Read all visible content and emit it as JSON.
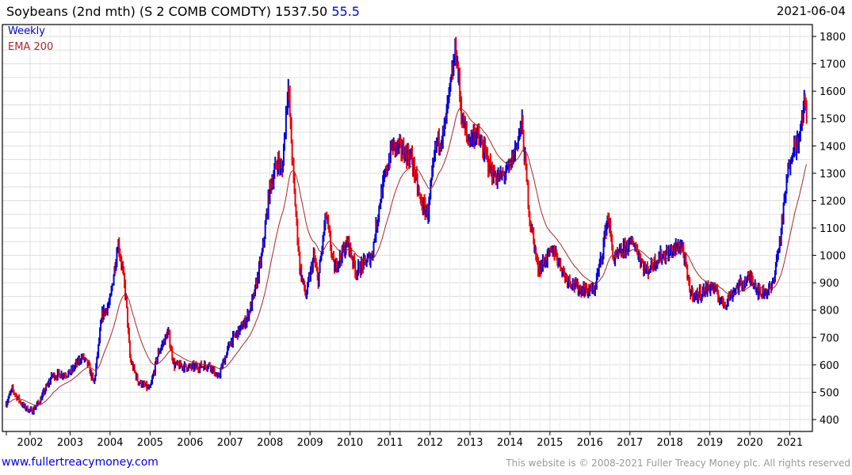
{
  "header": {
    "title": "Soybeans (2nd mth) (S 2 COMB COMDTY) 1537.50",
    "change": "55.5",
    "date": "2021-06-04"
  },
  "footer": {
    "site": "www.fullertreacymoney.com",
    "copyright": "This website is © 2008-2021 Fuller Treacy Money plc. All rights reserved"
  },
  "chart_data": {
    "type": "line",
    "title": "Soybeans (2nd mth) (S 2 COMB COMDTY)",
    "legend": [
      "Weekly",
      "EMA 200"
    ],
    "legend_placement": "top-left",
    "colors": {
      "up": "#0000dd",
      "down": "#ee0000",
      "ema": "#a52a2a",
      "grid": "#dddddd"
    },
    "xlim": [
      2001.4,
      2021.5
    ],
    "ylim": [
      380,
      1830
    ],
    "x_ticks": [
      "2002",
      "2003",
      "2004",
      "2005",
      "2006",
      "2007",
      "2008",
      "2009",
      "2010",
      "2011",
      "2012",
      "2013",
      "2014",
      "2015",
      "2016",
      "2017",
      "2018",
      "2019",
      "2020",
      "2021"
    ],
    "y_ticks": [
      400,
      500,
      600,
      700,
      800,
      900,
      1000,
      1100,
      1200,
      1300,
      1400,
      1500,
      1600,
      1700,
      1800
    ],
    "grid": true,
    "ema_period_weeks": 40,
    "price_path": [
      [
        2001.4,
        460
      ],
      [
        2001.55,
        510
      ],
      [
        2001.85,
        445
      ],
      [
        2002.05,
        430
      ],
      [
        2002.25,
        470
      ],
      [
        2002.55,
        560
      ],
      [
        2003.0,
        570
      ],
      [
        2003.3,
        630
      ],
      [
        2003.45,
        600
      ],
      [
        2003.6,
        530
      ],
      [
        2003.8,
        780
      ],
      [
        2004.0,
        830
      ],
      [
        2004.2,
        1050
      ],
      [
        2004.3,
        960
      ],
      [
        2004.4,
        840
      ],
      [
        2004.5,
        620
      ],
      [
        2004.7,
        540
      ],
      [
        2005.0,
        510
      ],
      [
        2005.2,
        640
      ],
      [
        2005.45,
        720
      ],
      [
        2005.6,
        600
      ],
      [
        2006.0,
        590
      ],
      [
        2006.5,
        600
      ],
      [
        2006.7,
        550
      ],
      [
        2007.0,
        680
      ],
      [
        2007.4,
        760
      ],
      [
        2007.6,
        850
      ],
      [
        2007.8,
        1000
      ],
      [
        2008.0,
        1250
      ],
      [
        2008.2,
        1350
      ],
      [
        2008.3,
        1300
      ],
      [
        2008.45,
        1630
      ],
      [
        2008.6,
        1250
      ],
      [
        2008.75,
        950
      ],
      [
        2008.9,
        850
      ],
      [
        2009.1,
        1000
      ],
      [
        2009.2,
        900
      ],
      [
        2009.4,
        1150
      ],
      [
        2009.6,
        950
      ],
      [
        2009.95,
        1050
      ],
      [
        2010.15,
        940
      ],
      [
        2010.55,
        1000
      ],
      [
        2010.75,
        1200
      ],
      [
        2011.05,
        1400
      ],
      [
        2011.35,
        1380
      ],
      [
        2011.55,
        1350
      ],
      [
        2011.75,
        1200
      ],
      [
        2011.95,
        1150
      ],
      [
        2012.15,
        1400
      ],
      [
        2012.35,
        1450
      ],
      [
        2012.55,
        1650
      ],
      [
        2012.65,
        1760
      ],
      [
        2012.8,
        1500
      ],
      [
        2012.95,
        1420
      ],
      [
        2013.15,
        1450
      ],
      [
        2013.35,
        1380
      ],
      [
        2013.55,
        1300
      ],
      [
        2013.75,
        1280
      ],
      [
        2014.0,
        1320
      ],
      [
        2014.3,
        1480
      ],
      [
        2014.5,
        1130
      ],
      [
        2014.6,
        1050
      ],
      [
        2014.7,
        950
      ],
      [
        2015.1,
        1020
      ],
      [
        2015.4,
        920
      ],
      [
        2015.7,
        880
      ],
      [
        2016.1,
        870
      ],
      [
        2016.3,
        1000
      ],
      [
        2016.45,
        1150
      ],
      [
        2016.6,
        980
      ],
      [
        2016.9,
        1030
      ],
      [
        2017.1,
        1050
      ],
      [
        2017.4,
        940
      ],
      [
        2017.7,
        990
      ],
      [
        2018.1,
        1020
      ],
      [
        2018.3,
        1040
      ],
      [
        2018.5,
        870
      ],
      [
        2018.65,
        850
      ],
      [
        2019.05,
        890
      ],
      [
        2019.35,
        820
      ],
      [
        2019.65,
        880
      ],
      [
        2020.05,
        920
      ],
      [
        2020.25,
        860
      ],
      [
        2020.55,
        880
      ],
      [
        2020.75,
        1050
      ],
      [
        2020.95,
        1300
      ],
      [
        2021.05,
        1390
      ],
      [
        2021.25,
        1420
      ],
      [
        2021.35,
        1560
      ],
      [
        2021.42,
        1537.5
      ]
    ]
  }
}
